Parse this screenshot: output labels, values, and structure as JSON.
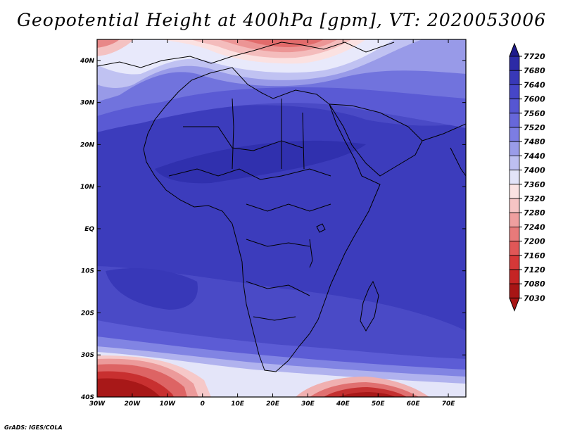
{
  "title": "Geopotential Height at 400hPa [gpm], VT: 2020053006",
  "credit": "GrADS: IGES/COLA",
  "map": {
    "x_ticks": [
      "30W",
      "20W",
      "10W",
      "0",
      "10E",
      "20E",
      "30E",
      "40E",
      "50E",
      "60E",
      "70E"
    ],
    "y_ticks": [
      "40N",
      "30N",
      "20N",
      "10N",
      "EQ",
      "10S",
      "20S",
      "30S",
      "40S"
    ],
    "lon_range": [
      -30,
      75
    ],
    "lat_range": [
      -40,
      45
    ]
  },
  "colorbar": {
    "levels": [
      "7720",
      "7680",
      "7640",
      "7600",
      "7560",
      "7520",
      "7480",
      "7440",
      "7400",
      "7360",
      "7320",
      "7280",
      "7240",
      "7200",
      "7160",
      "7120",
      "7080",
      "7030"
    ],
    "colors": [
      "#1e1a8c",
      "#2c2aa6",
      "#3838b8",
      "#4646c8",
      "#5656d2",
      "#6767da",
      "#7c7de2",
      "#9a9ce9",
      "#bdbff1",
      "#e2e3f8",
      "#fbe3e3",
      "#f6c4c4",
      "#ef9f9f",
      "#e87a7a",
      "#e05757",
      "#d63838",
      "#c52424",
      "#a81515"
    ]
  }
}
